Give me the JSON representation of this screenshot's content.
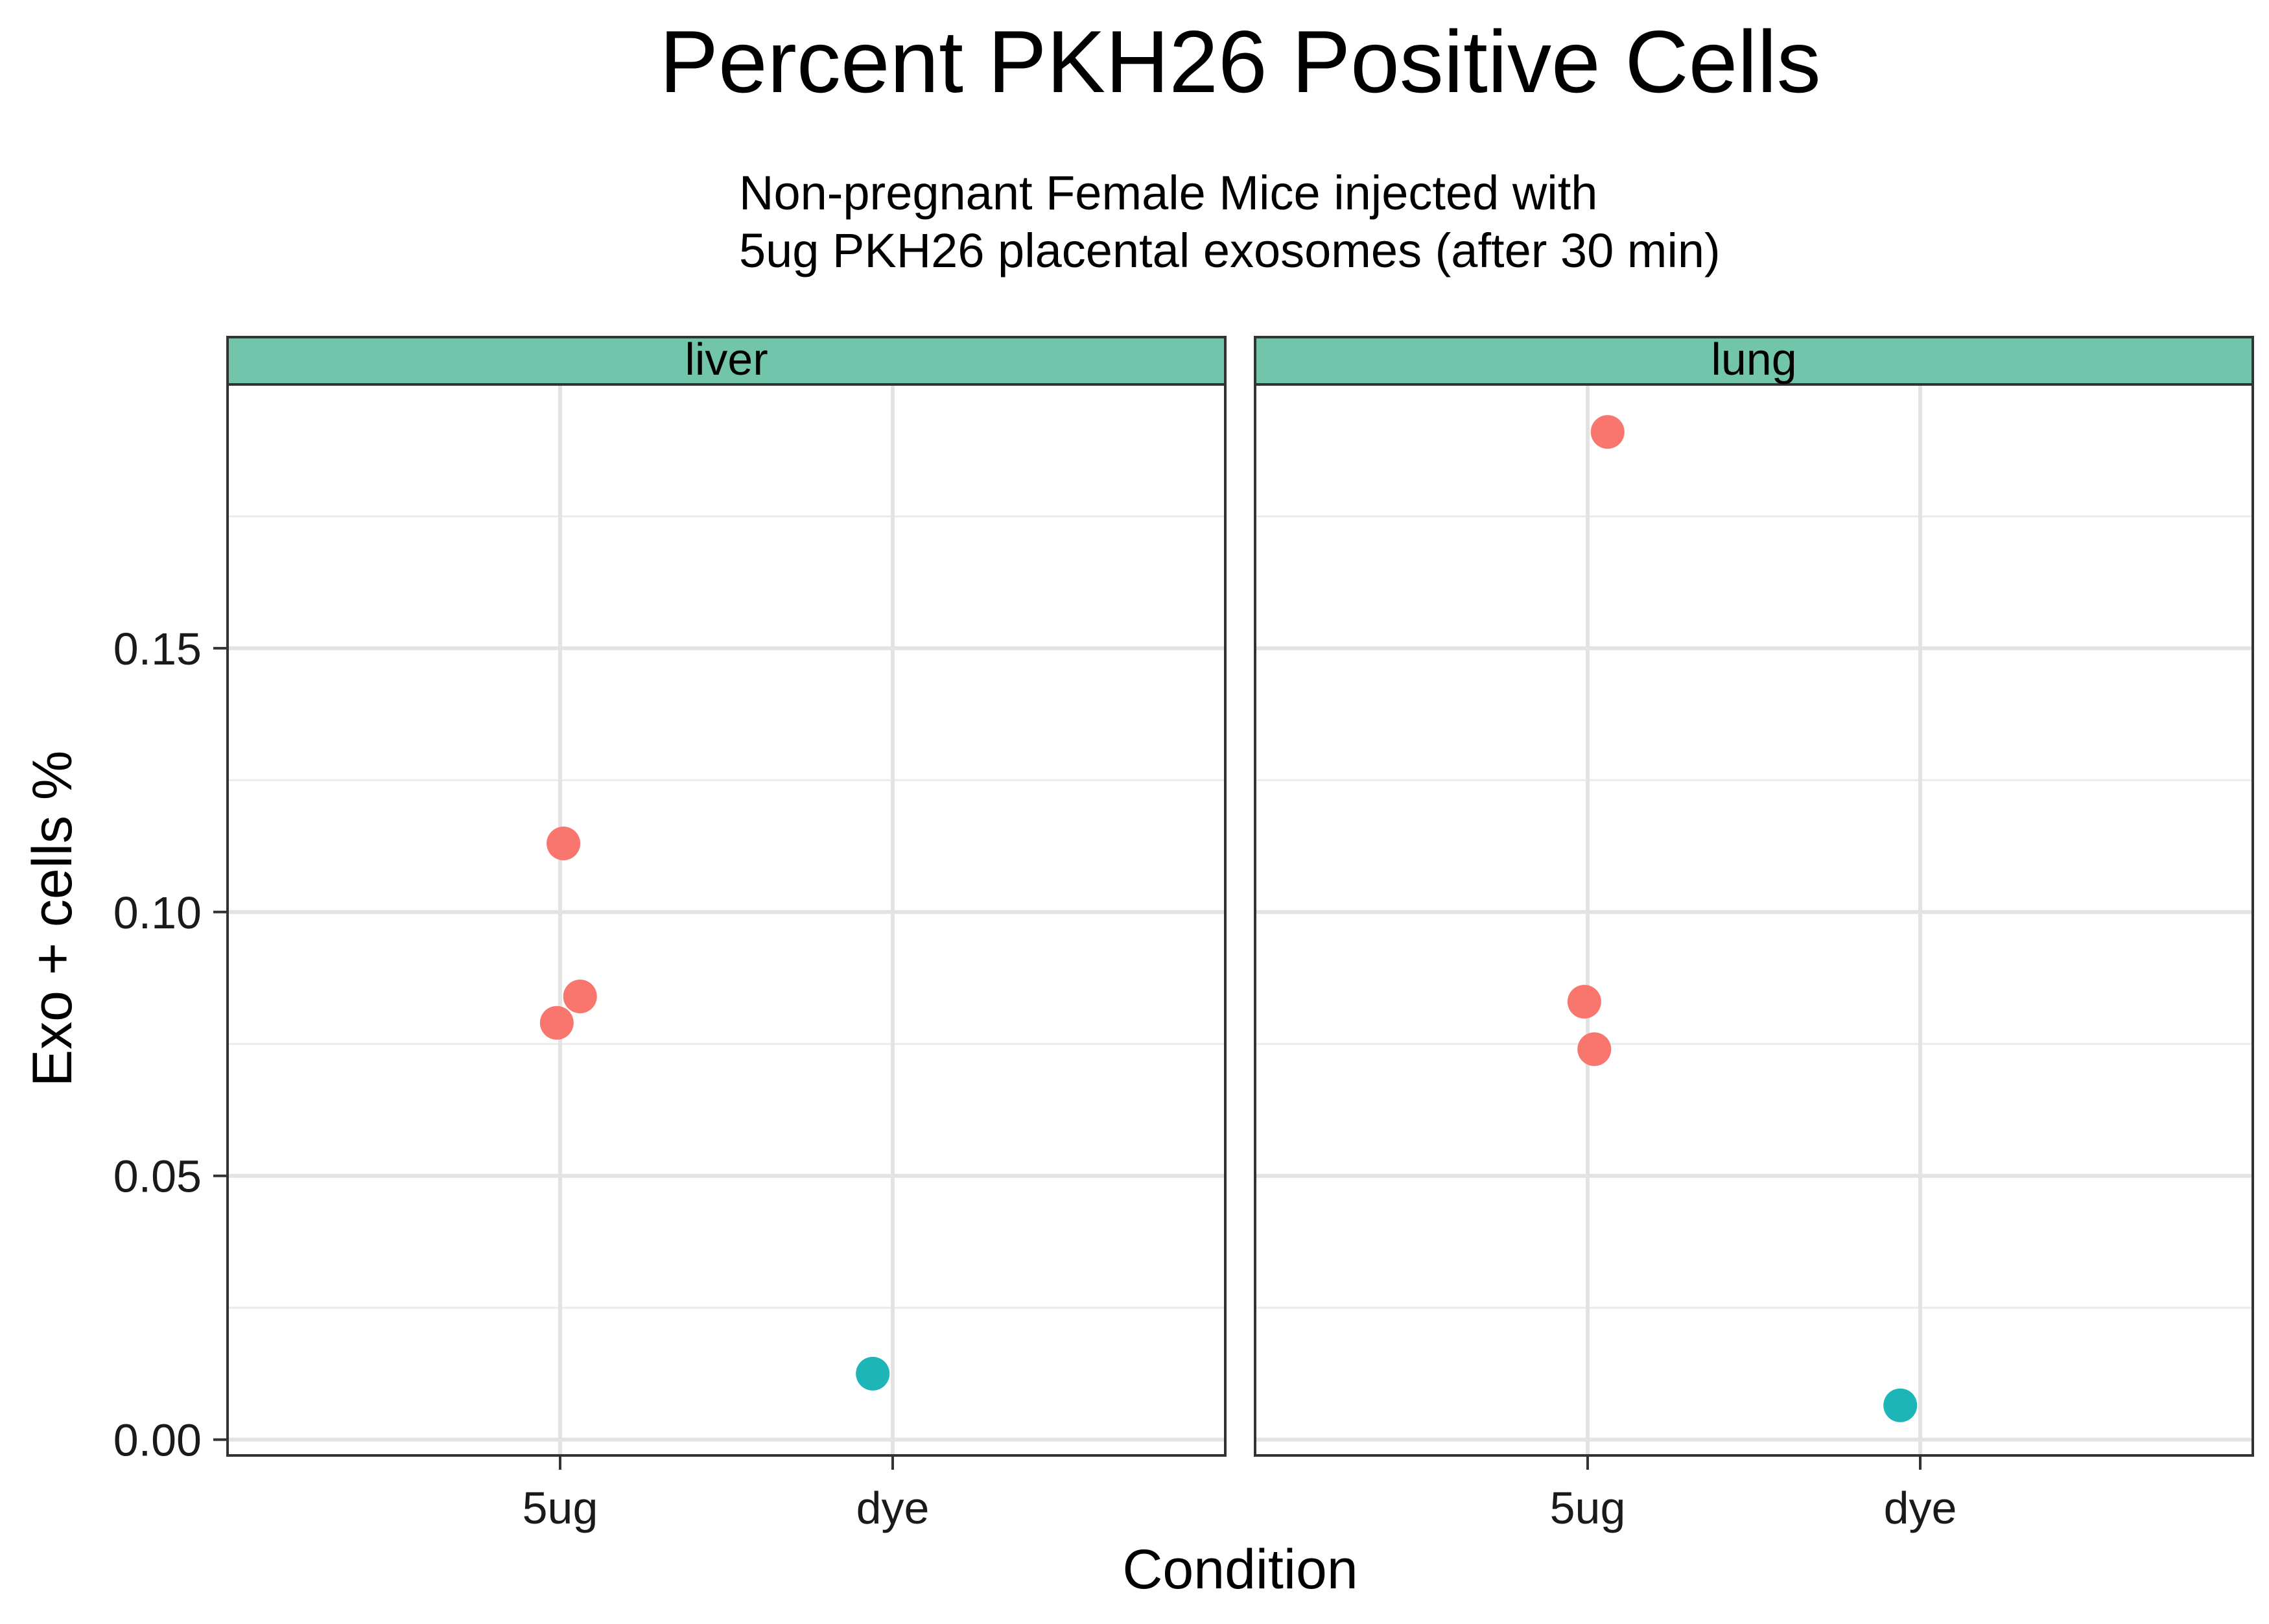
{
  "chart_data": {
    "type": "scatter",
    "title": "Percent PKH26 Positive Cells",
    "subtitle_lines": [
      "Non-pregnant Female Mice injected with",
      "5ug PKH26 placental exosomes (after 30 min)"
    ],
    "xlabel": "Condition",
    "ylabel": "Exo + cells %",
    "categories": [
      "5ug",
      "dye"
    ],
    "ylim": [
      -0.003,
      0.2
    ],
    "yticks": [
      0.0,
      0.05,
      0.1,
      0.15
    ],
    "ytick_labels": [
      "0.00",
      "0.05",
      "0.10",
      "0.15"
    ],
    "grid": true,
    "legend": "none",
    "colors": {
      "5ug": "#F8766D",
      "dye": "#1DB5B5",
      "strip": "#72C5AB"
    },
    "panels": [
      {
        "label": "liver",
        "points": [
          {
            "condition": "5ug",
            "jitter": 0.01,
            "y": 0.113
          },
          {
            "condition": "5ug",
            "jitter": 0.06,
            "y": 0.084
          },
          {
            "condition": "5ug",
            "jitter": -0.01,
            "y": 0.079
          },
          {
            "condition": "dye",
            "jitter": -0.06,
            "y": 0.0125
          }
        ]
      },
      {
        "label": "lung",
        "points": [
          {
            "condition": "5ug",
            "jitter": 0.06,
            "y": 0.191
          },
          {
            "condition": "5ug",
            "jitter": -0.01,
            "y": 0.083
          },
          {
            "condition": "5ug",
            "jitter": 0.02,
            "y": 0.074
          },
          {
            "condition": "dye",
            "jitter": -0.06,
            "y": 0.0065
          }
        ]
      }
    ]
  }
}
